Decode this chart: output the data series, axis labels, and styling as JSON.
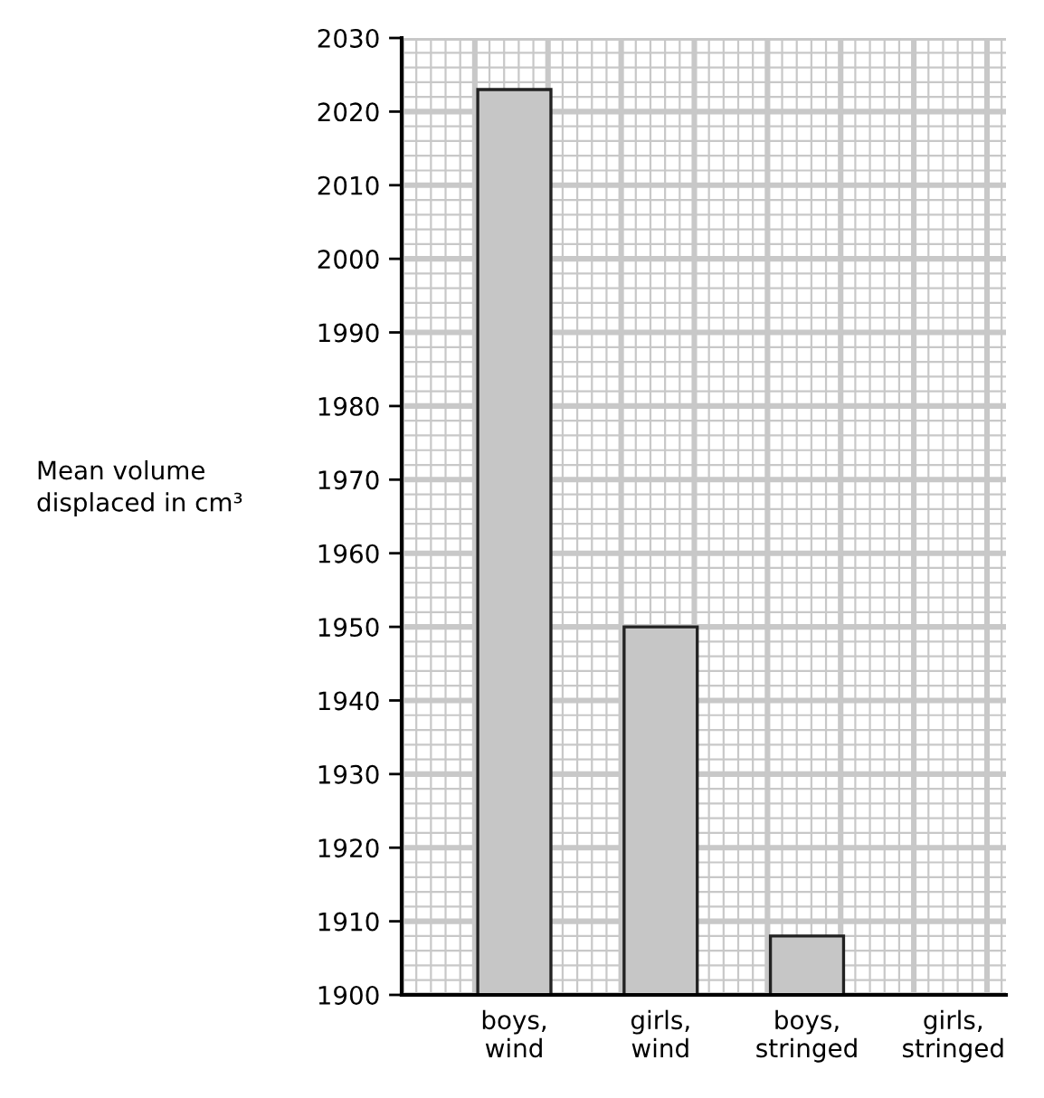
{
  "chart_data": {
    "type": "bar",
    "categories": [
      "boys,\nwind",
      "girls,\nwind",
      "boys,\nstringed",
      "girls,\nstringed"
    ],
    "values": [
      2023,
      1950,
      1908,
      null
    ],
    "color": "#c6c6c6",
    "ylabel": "Mean volume\ndisplaced in cm³",
    "ylim": [
      1900,
      2030
    ],
    "yticks": [
      1900,
      1910,
      1920,
      1930,
      1940,
      1950,
      1960,
      1970,
      1980,
      1990,
      2000,
      2010,
      2020,
      2030
    ],
    "grid": true
  }
}
